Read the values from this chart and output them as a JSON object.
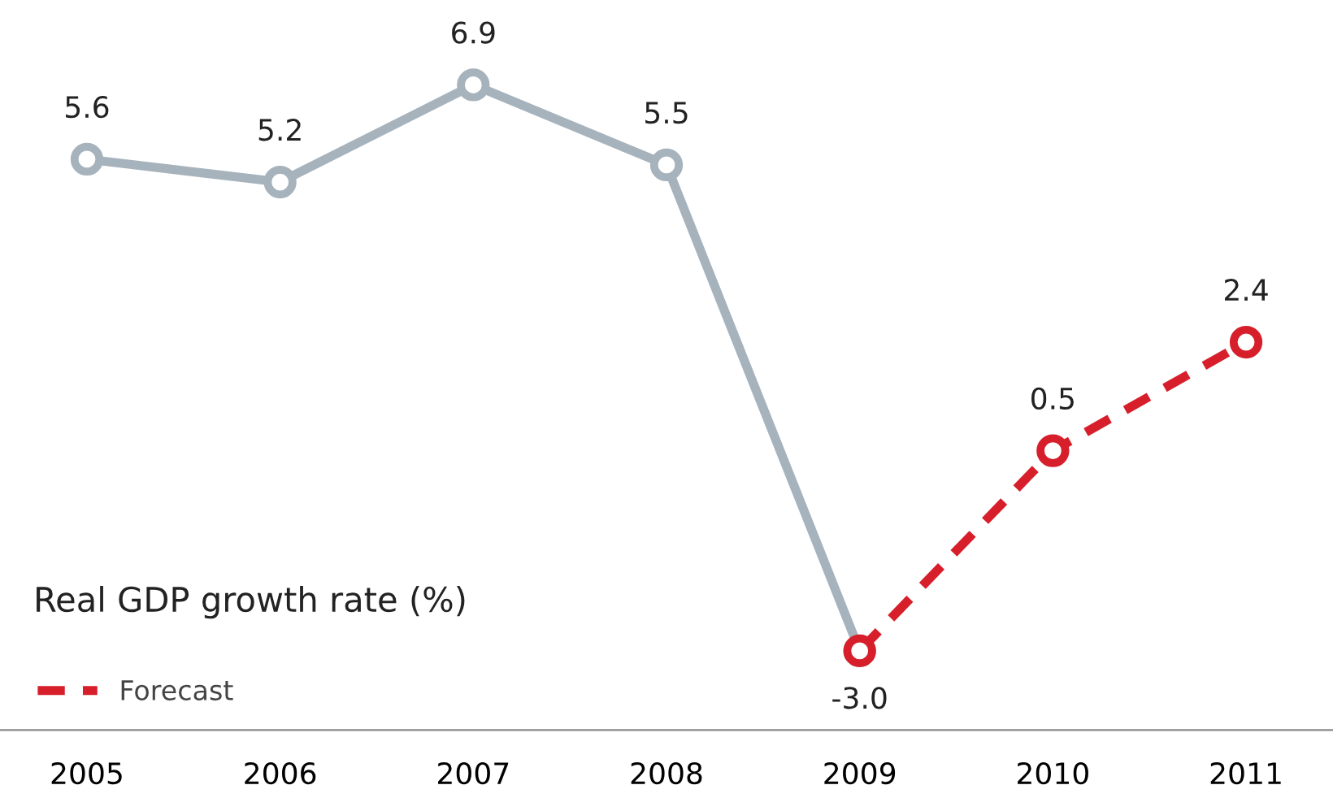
{
  "chart_data": {
    "type": "line",
    "title": "Real GDP growth rate (%)",
    "categories": [
      "2005",
      "2006",
      "2007",
      "2008",
      "2009",
      "2010",
      "2011"
    ],
    "series": [
      {
        "color": "#a7b3bc",
        "line_style": "solid",
        "values": [
          5.6,
          5.2,
          6.9,
          5.5,
          -3.0,
          null,
          null
        ],
        "value_labels": [
          "5.6",
          "5.2",
          "6.9",
          "5.5",
          "-3.0",
          null,
          null
        ]
      },
      {
        "name": "Forecast",
        "color": "#d71f2b",
        "line_style": "dashed",
        "values": [
          null,
          null,
          null,
          null,
          -3.0,
          0.5,
          2.4
        ],
        "value_labels": [
          null,
          null,
          null,
          null,
          null,
          "0.5",
          "2.4"
        ]
      }
    ],
    "marker": "circle",
    "grid": false,
    "legend": "bottom left"
  }
}
